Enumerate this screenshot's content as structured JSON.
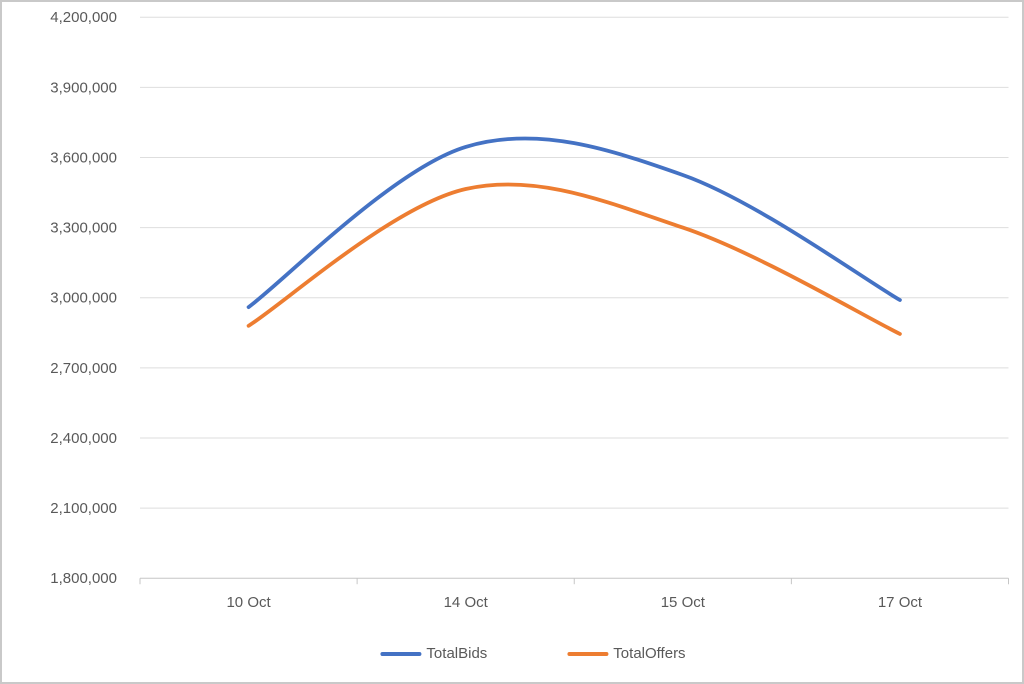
{
  "chart_data": {
    "type": "line",
    "line_style": "smooth",
    "title": "",
    "xlabel": "",
    "ylabel": "",
    "categories": [
      "10 Oct",
      "14 Oct",
      "15 Oct",
      "17 Oct"
    ],
    "series": [
      {
        "name": "TotalBids",
        "color": "#4472C4",
        "values": [
          2960000,
          3645000,
          3525000,
          2990000
        ]
      },
      {
        "name": "TotalOffers",
        "color": "#ED7D31",
        "values": [
          2880000,
          3465000,
          3300000,
          2845000
        ]
      }
    ],
    "ylim": [
      1800000,
      4200000
    ],
    "y_tick_step": 300000,
    "y_tick_labels": [
      "1,800,000",
      "2,100,000",
      "2,400,000",
      "2,700,000",
      "3,000,000",
      "3,300,000",
      "3,600,000",
      "3,900,000",
      "4,200,000"
    ],
    "grid": "horizontal-only",
    "legend_position": "bottom"
  },
  "style": {
    "gridline_color": "#dedede",
    "axis_color": "#c6c6c6",
    "tick_color": "#c6c6c6",
    "label_color": "#595959"
  }
}
